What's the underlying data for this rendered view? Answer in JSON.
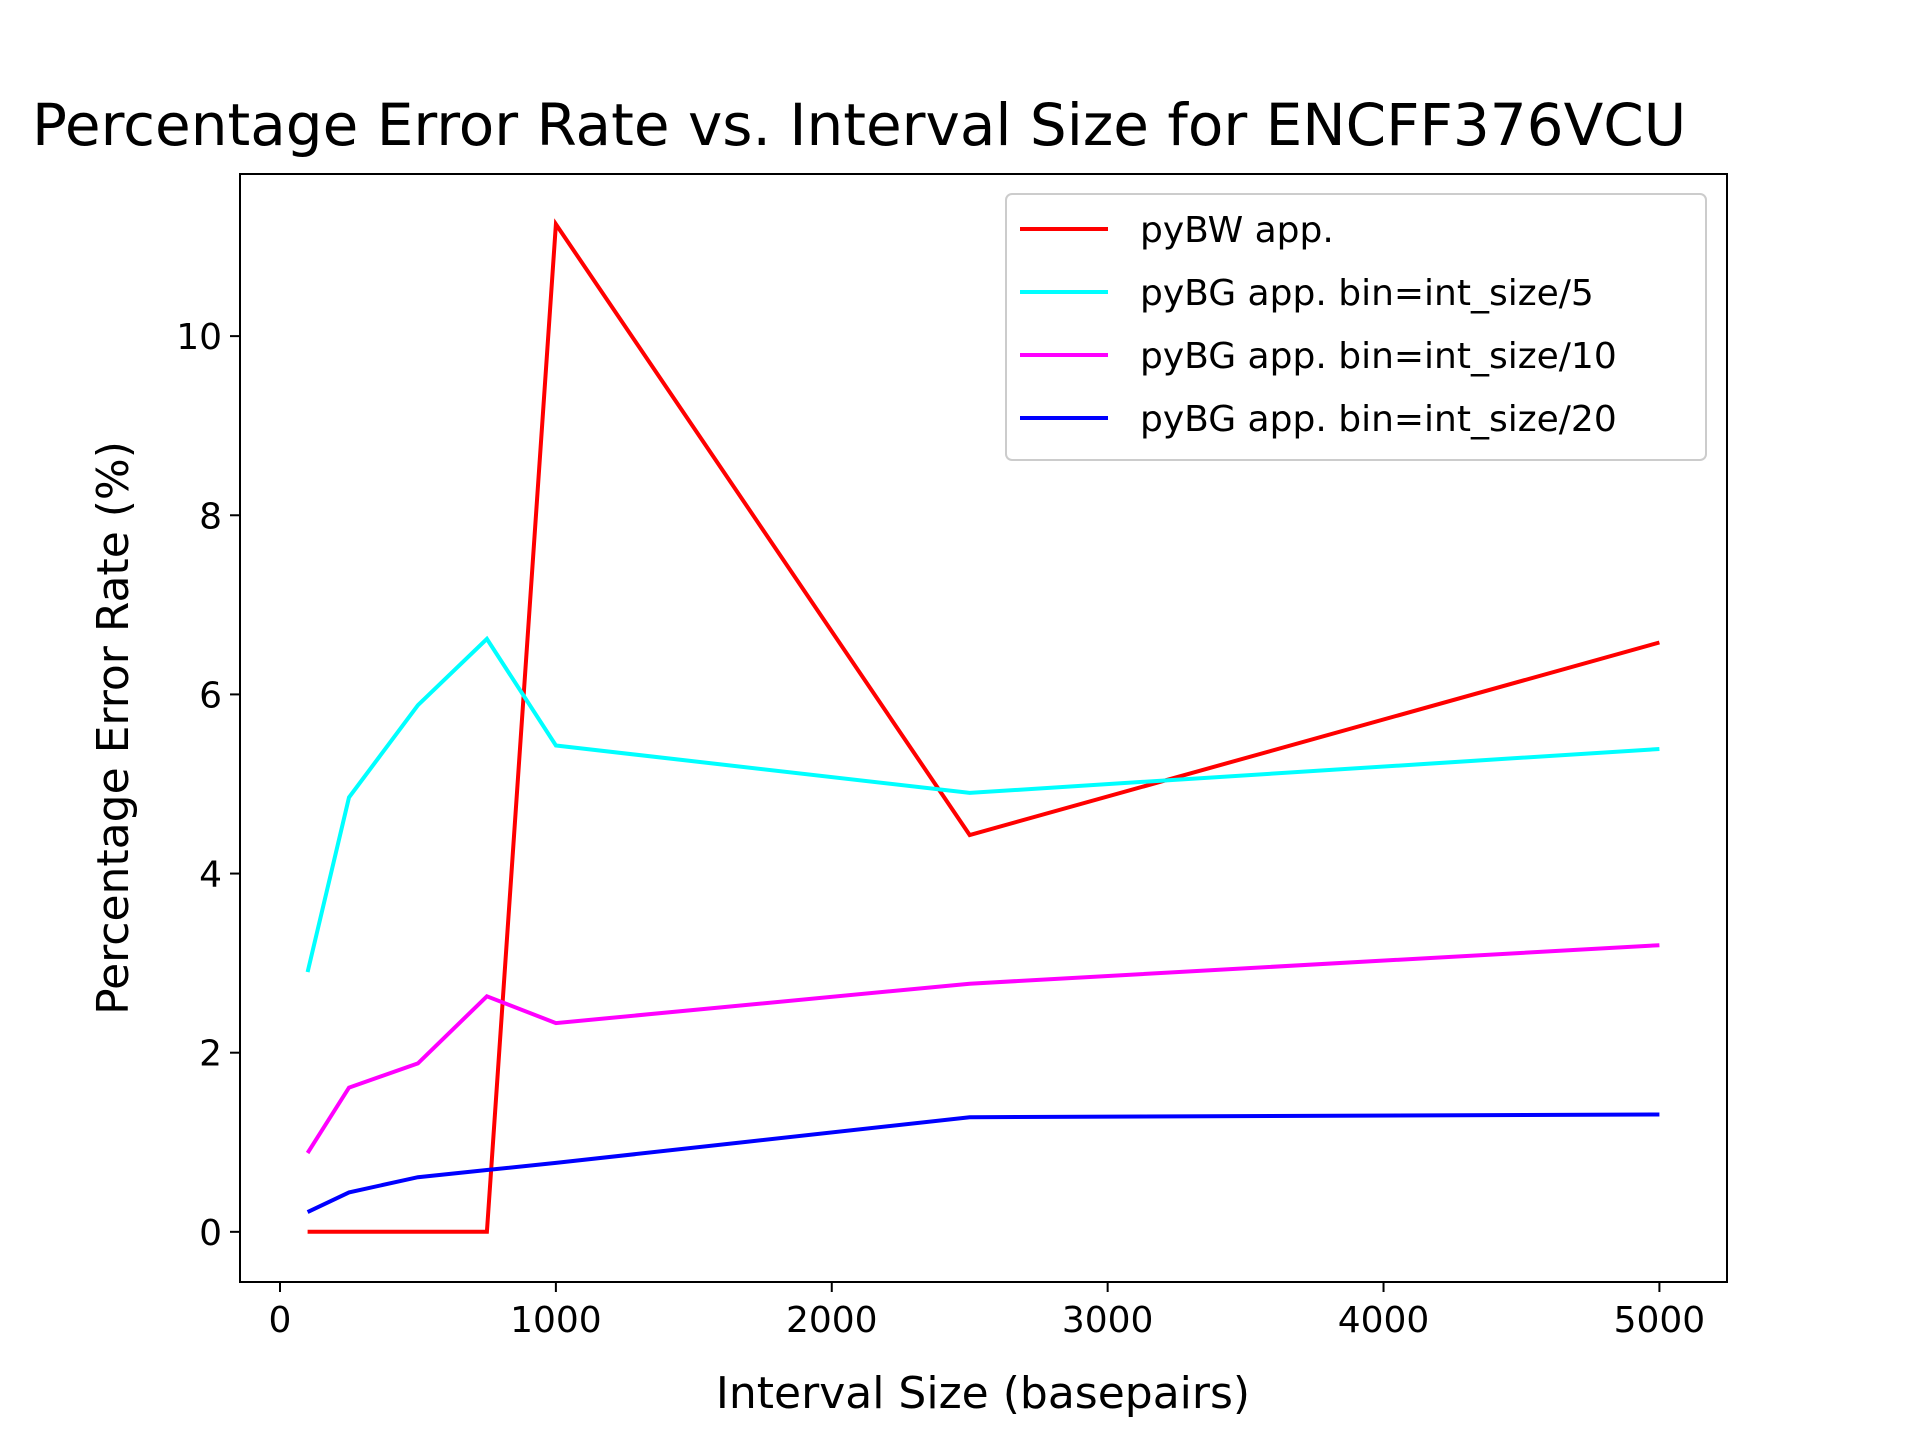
{
  "chart_data": {
    "type": "line",
    "title": "Percentage Error Rate vs. Interval Size for ENCFF376VCU",
    "xlabel": "Interval Size (basepairs)",
    "ylabel": "Percentage Error Rate (%)",
    "x": [
      100,
      250,
      500,
      750,
      1000,
      2500,
      5000
    ],
    "series": [
      {
        "name": "pyBW app.",
        "color": "#ff0000",
        "values": [
          0.0,
          0.0,
          0.0,
          0.0,
          11.25,
          4.43,
          6.58
        ]
      },
      {
        "name": "pyBG app. bin=int_size/5",
        "color": "#00ffff",
        "values": [
          2.9,
          4.85,
          5.88,
          6.62,
          5.43,
          4.9,
          5.39
        ]
      },
      {
        "name": "pyBG app. bin=int_size/10",
        "color": "#ff00ff",
        "values": [
          0.88,
          1.61,
          1.88,
          2.63,
          2.33,
          2.77,
          3.2
        ]
      },
      {
        "name": "pyBG app. bin=int_size/20",
        "color": "#0000ff",
        "values": [
          0.22,
          0.44,
          0.61,
          0.69,
          0.77,
          1.28,
          1.31
        ]
      }
    ],
    "xlim": [
      -145,
      5245
    ],
    "ylim": [
      -0.56,
      11.81
    ],
    "xticks": [
      0,
      1000,
      2000,
      3000,
      4000,
      5000
    ],
    "xtick_labels": [
      "0",
      "1000",
      "2000",
      "3000",
      "4000",
      "5000"
    ],
    "yticks": [
      0,
      2,
      4,
      6,
      8,
      10
    ],
    "ytick_labels": [
      "0",
      "2",
      "4",
      "6",
      "8",
      "10"
    ],
    "grid": false,
    "legend_position": "top-right"
  }
}
